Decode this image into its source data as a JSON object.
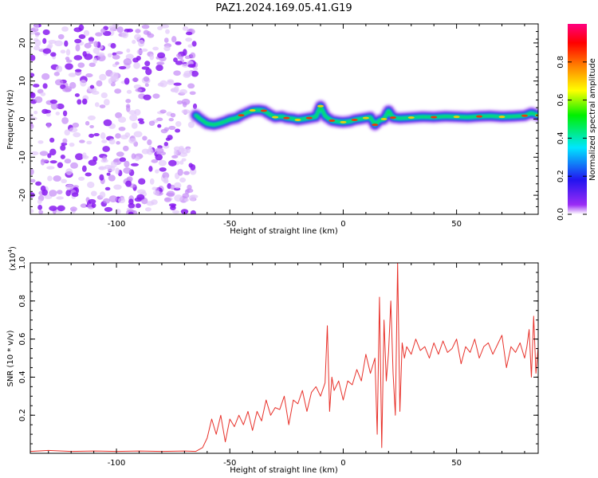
{
  "title": "PAZ1.2024.169.05.41.G19",
  "chart_data": [
    {
      "type": "heatmap",
      "xlabel": "Height of straight line (km)",
      "ylabel": "Frequency (Hz)",
      "xlim": [
        -138,
        86
      ],
      "ylim": [
        -25,
        25
      ],
      "xticks": [
        -100,
        -50,
        0,
        50
      ],
      "xtick_labels": [
        "-100",
        "-50",
        "0",
        "50"
      ],
      "yticks": [
        -20,
        -10,
        0,
        10,
        20
      ],
      "ytick_labels": [
        "-20",
        "-10",
        "0",
        "10",
        "20"
      ],
      "noise_region_x": [
        -138,
        -65
      ],
      "ridge": {
        "x": [
          -65,
          -63,
          -60,
          -57,
          -55,
          -52,
          -50,
          -47,
          -45,
          -42,
          -40,
          -37,
          -35,
          -32,
          -30,
          -27,
          -25,
          -22,
          -20,
          -17,
          -15,
          -12,
          -10,
          -8,
          -5,
          -2,
          0,
          3,
          5,
          8,
          10,
          12,
          14,
          16,
          18,
          20,
          22,
          25,
          30,
          35,
          40,
          45,
          50,
          55,
          60,
          65,
          70,
          75,
          80,
          83,
          86
        ],
        "freq": [
          1.0,
          0.0,
          -1.2,
          -1.5,
          -1.2,
          -0.6,
          -0.1,
          0.3,
          1.0,
          1.8,
          2.3,
          2.4,
          2.2,
          1.1,
          0.5,
          0.7,
          0.3,
          0.1,
          -0.2,
          0.1,
          0.3,
          0.6,
          3.4,
          0.8,
          -0.4,
          -0.7,
          -0.8,
          -0.6,
          -0.2,
          0.1,
          0.3,
          0.5,
          -1.5,
          -0.3,
          0.0,
          2.2,
          0.4,
          0.2,
          0.4,
          0.6,
          0.5,
          0.7,
          0.6,
          0.5,
          0.7,
          0.8,
          0.6,
          0.7,
          0.9,
          1.6,
          1.0
        ]
      }
    },
    {
      "type": "line",
      "xlabel": "Height of straight line (km)",
      "ylabel": "SNR (10 * v/v)",
      "scale_label": "(x10",
      "scale_exp": "4",
      "scale_close": ")",
      "xlim": [
        -138,
        86
      ],
      "ylim": [
        0,
        1.0
      ],
      "xticks": [
        -100,
        -50,
        0,
        50
      ],
      "xtick_labels": [
        "-100",
        "-50",
        "0",
        "50"
      ],
      "yticks": [
        0.2,
        0.4,
        0.6,
        0.8,
        1.0
      ],
      "ytick_labels": [
        "0.2",
        "0.4",
        "0.6",
        "0.8",
        "1.0"
      ],
      "series": [
        {
          "color": "#e8312a",
          "x": [
            -138,
            -130,
            -120,
            -110,
            -100,
            -90,
            -80,
            -70,
            -65,
            -62,
            -60,
            -58,
            -56,
            -54,
            -52,
            -50,
            -48,
            -46,
            -44,
            -42,
            -40,
            -38,
            -36,
            -34,
            -32,
            -30,
            -28,
            -26,
            -24,
            -22,
            -20,
            -18,
            -16,
            -14,
            -12,
            -10,
            -8,
            -7,
            -6,
            -5,
            -4,
            -2,
            0,
            2,
            4,
            6,
            8,
            10,
            12,
            14,
            15,
            16,
            17,
            18,
            19,
            20,
            21,
            22,
            23,
            24,
            25,
            26,
            27,
            28,
            30,
            32,
            34,
            36,
            38,
            40,
            42,
            44,
            46,
            48,
            50,
            52,
            54,
            56,
            58,
            60,
            62,
            64,
            66,
            68,
            70,
            72,
            74,
            76,
            78,
            80,
            81,
            82,
            83,
            84,
            85,
            86
          ],
          "y": [
            0.01,
            0.015,
            0.01,
            0.012,
            0.01,
            0.012,
            0.01,
            0.012,
            0.01,
            0.03,
            0.08,
            0.18,
            0.1,
            0.2,
            0.06,
            0.18,
            0.14,
            0.2,
            0.15,
            0.22,
            0.12,
            0.22,
            0.17,
            0.28,
            0.2,
            0.24,
            0.23,
            0.3,
            0.15,
            0.28,
            0.26,
            0.33,
            0.22,
            0.32,
            0.35,
            0.3,
            0.37,
            0.67,
            0.22,
            0.4,
            0.33,
            0.38,
            0.28,
            0.38,
            0.36,
            0.44,
            0.38,
            0.52,
            0.42,
            0.5,
            0.1,
            0.82,
            0.03,
            0.7,
            0.38,
            0.53,
            0.8,
            0.42,
            0.2,
            1.0,
            0.22,
            0.58,
            0.5,
            0.56,
            0.52,
            0.6,
            0.54,
            0.56,
            0.5,
            0.58,
            0.52,
            0.59,
            0.53,
            0.55,
            0.6,
            0.47,
            0.56,
            0.53,
            0.6,
            0.5,
            0.56,
            0.58,
            0.52,
            0.57,
            0.62,
            0.45,
            0.56,
            0.53,
            0.58,
            0.5,
            0.56,
            0.65,
            0.4,
            0.72,
            0.42,
            0.56
          ]
        }
      ]
    }
  ],
  "colorbar": {
    "label": "Normalized spectral amplitude",
    "range": [
      0,
      1
    ],
    "ticks": [
      0.0,
      0.2,
      0.4,
      0.6,
      0.8
    ],
    "tick_labels": [
      "0.0",
      "0.2",
      "0.4",
      "0.6",
      "0.8"
    ],
    "colors": [
      "#ffffff",
      "#9a2cf5",
      "#2214f0",
      "#00e6ff",
      "#00f000",
      "#ffff00",
      "#ff8000",
      "#ff0000",
      "#ff0080"
    ]
  }
}
